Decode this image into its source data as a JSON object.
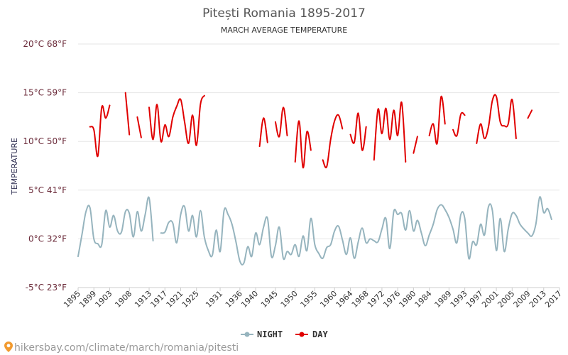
{
  "chart_data": {
    "type": "line",
    "title": "Pitești Romania 1895-2017",
    "subtitle": "MARCH AVERAGE TEMPERATURE",
    "ylabel": "TEMPERATURE",
    "ylim": [
      -5,
      20
    ],
    "xlim": [
      1895,
      2017
    ],
    "y_ticks": [
      {
        "value": 20,
        "label": "20°C 68°F"
      },
      {
        "value": 15,
        "label": "15°C 59°F"
      },
      {
        "value": 10,
        "label": "10°C 50°F"
      },
      {
        "value": 5,
        "label": "5°C 41°F"
      },
      {
        "value": 0,
        "label": "0°C 32°F"
      },
      {
        "value": -5,
        "label": "-5°C 23°F"
      }
    ],
    "x_ticks": [
      1895,
      1899,
      1903,
      1908,
      1913,
      1917,
      1921,
      1925,
      1931,
      1936,
      1940,
      1945,
      1950,
      1955,
      1960,
      1964,
      1968,
      1972,
      1976,
      1980,
      1984,
      1989,
      1993,
      1997,
      2001,
      2005,
      2009,
      2013,
      2017
    ],
    "grid": true,
    "legend_position": "bottom",
    "series": [
      {
        "name": "NIGHT",
        "color": "#96b4be",
        "segments": [
          [
            [
              1895,
              -1.8
            ],
            [
              1896,
              0.5
            ],
            [
              1897,
              2.8
            ],
            [
              1898,
              3.2
            ],
            [
              1899,
              0
            ],
            [
              1900,
              -0.5
            ],
            [
              1901,
              -0.6
            ],
            [
              1902,
              2.9
            ],
            [
              1903,
              1.2
            ],
            [
              1904,
              2.4
            ],
            [
              1905,
              0.8
            ],
            [
              1906,
              0.7
            ],
            [
              1907,
              2.8
            ],
            [
              1908,
              2.6
            ],
            [
              1909,
              0.2
            ],
            [
              1910,
              2.8
            ],
            [
              1911,
              0.8
            ],
            [
              1912,
              2.5
            ],
            [
              1913,
              4.2
            ],
            [
              1914,
              -0.2
            ]
          ],
          [
            [
              1916,
              0.6
            ],
            [
              1917,
              0.7
            ],
            [
              1918,
              1.7
            ],
            [
              1919,
              1.6
            ],
            [
              1920,
              -0.4
            ],
            [
              1921,
              2.5
            ],
            [
              1922,
              3.3
            ],
            [
              1923,
              0.8
            ],
            [
              1924,
              2.4
            ],
            [
              1925,
              0.2
            ],
            [
              1926,
              2.9
            ],
            [
              1927,
              0.2
            ],
            [
              1928,
              -1.2
            ],
            [
              1929,
              -1.7
            ],
            [
              1930,
              0.9
            ],
            [
              1931,
              -1.3
            ],
            [
              1932,
              2.9
            ],
            [
              1933,
              2.5
            ],
            [
              1934,
              1.5
            ],
            [
              1935,
              -0.3
            ],
            [
              1936,
              -2.3
            ],
            [
              1937,
              -2.5
            ],
            [
              1938,
              -0.8
            ],
            [
              1939,
              -1.8
            ],
            [
              1940,
              0.6
            ],
            [
              1941,
              -0.6
            ],
            [
              1942,
              1.2
            ],
            [
              1943,
              2.1
            ],
            [
              1944,
              -1.8
            ],
            [
              1945,
              -0.7
            ],
            [
              1946,
              1.2
            ],
            [
              1947,
              -2.0
            ],
            [
              1948,
              -1.3
            ],
            [
              1949,
              -1.6
            ],
            [
              1950,
              -0.6
            ],
            [
              1951,
              -1.8
            ],
            [
              1952,
              0.3
            ],
            [
              1953,
              -1.2
            ],
            [
              1954,
              2.1
            ],
            [
              1955,
              -0.6
            ],
            [
              1956,
              -1.5
            ],
            [
              1957,
              -2.0
            ],
            [
              1958,
              -0.9
            ],
            [
              1959,
              -0.6
            ],
            [
              1960,
              0.8
            ],
            [
              1961,
              1.3
            ],
            [
              1962,
              -0.1
            ],
            [
              1963,
              -1.6
            ],
            [
              1964,
              0.1
            ],
            [
              1965,
              -2.0
            ],
            [
              1966,
              -0.3
            ],
            [
              1967,
              1.1
            ],
            [
              1968,
              -0.4
            ],
            [
              1969,
              0.0
            ],
            [
              1970,
              -0.2
            ],
            [
              1971,
              -0.3
            ],
            [
              1972,
              1.0
            ],
            [
              1973,
              2.1
            ],
            [
              1974,
              -1.0
            ],
            [
              1975,
              2.8
            ],
            [
              1976,
              2.5
            ],
            [
              1977,
              2.6
            ],
            [
              1978,
              0.9
            ],
            [
              1979,
              2.9
            ],
            [
              1980,
              0.8
            ],
            [
              1981,
              1.9
            ],
            [
              1982,
              0.6
            ],
            [
              1983,
              -0.7
            ],
            [
              1984,
              0.4
            ],
            [
              1985,
              1.5
            ],
            [
              1986,
              3.0
            ],
            [
              1987,
              3.5
            ],
            [
              1988,
              3.0
            ],
            [
              1989,
              2.2
            ],
            [
              1990,
              1.0
            ],
            [
              1991,
              -0.4
            ],
            [
              1992,
              2.5
            ],
            [
              1993,
              2.1
            ],
            [
              1994,
              -2.0
            ],
            [
              1995,
              -0.3
            ],
            [
              1996,
              -0.6
            ],
            [
              1997,
              1.5
            ],
            [
              1998,
              0.4
            ],
            [
              1999,
              3.3
            ],
            [
              2000,
              2.9
            ],
            [
              2001,
              -1.2
            ],
            [
              2002,
              2.1
            ],
            [
              2003,
              -1.3
            ],
            [
              2004,
              1.0
            ],
            [
              2005,
              2.6
            ],
            [
              2006,
              2.4
            ],
            [
              2007,
              1.5
            ],
            [
              2008,
              1.0
            ],
            [
              2009,
              0.6
            ],
            [
              2010,
              0.3
            ],
            [
              2011,
              1.5
            ],
            [
              2012,
              4.3
            ],
            [
              2013,
              2.7
            ],
            [
              2014,
              3.1
            ],
            [
              2015,
              2.0
            ]
          ]
        ]
      },
      {
        "name": "DAY",
        "color": "#e00000",
        "segments": [
          [
            [
              1898,
              11.5
            ],
            [
              1899,
              11.2
            ],
            [
              1900,
              8.5
            ],
            [
              1901,
              13.5
            ],
            [
              1902,
              12.4
            ],
            [
              1903,
              13.7
            ]
          ],
          [
            [
              1907,
              15.0
            ],
            [
              1908,
              10.7
            ]
          ],
          [
            [
              1910,
              12.5
            ],
            [
              1911,
              10.4
            ]
          ],
          [
            [
              1913,
              13.5
            ],
            [
              1914,
              10.2
            ],
            [
              1915,
              13.8
            ],
            [
              1916,
              10.0
            ],
            [
              1917,
              11.7
            ],
            [
              1918,
              10.5
            ],
            [
              1919,
              12.5
            ],
            [
              1920,
              13.6
            ],
            [
              1921,
              14.3
            ],
            [
              1922,
              12.0
            ],
            [
              1923,
              9.8
            ],
            [
              1924,
              12.7
            ],
            [
              1925,
              9.6
            ],
            [
              1926,
              13.8
            ],
            [
              1927,
              14.7
            ]
          ],
          [
            [
              1941,
              9.5
            ],
            [
              1942,
              12.4
            ],
            [
              1943,
              9.9
            ]
          ],
          [
            [
              1945,
              12.0
            ],
            [
              1946,
              10.5
            ],
            [
              1947,
              13.5
            ],
            [
              1948,
              10.6
            ]
          ],
          [
            [
              1950,
              7.9
            ],
            [
              1951,
              12.1
            ],
            [
              1952,
              7.3
            ],
            [
              1953,
              11.0
            ],
            [
              1954,
              9.1
            ]
          ],
          [
            [
              1957,
              8.1
            ],
            [
              1958,
              7.4
            ],
            [
              1959,
              10.2
            ],
            [
              1960,
              12.1
            ],
            [
              1961,
              12.7
            ],
            [
              1962,
              11.3
            ]
          ],
          [
            [
              1964,
              10.7
            ],
            [
              1965,
              9.9
            ],
            [
              1966,
              12.9
            ],
            [
              1967,
              9.1
            ],
            [
              1968,
              11.5
            ]
          ],
          [
            [
              1970,
              8.1
            ],
            [
              1971,
              13.3
            ],
            [
              1972,
              10.8
            ],
            [
              1973,
              13.4
            ],
            [
              1974,
              10.2
            ],
            [
              1975,
              13.2
            ],
            [
              1976,
              10.6
            ],
            [
              1977,
              14.0
            ],
            [
              1978,
              7.9
            ]
          ],
          [
            [
              1980,
              8.8
            ],
            [
              1981,
              10.5
            ]
          ],
          [
            [
              1984,
              10.6
            ],
            [
              1985,
              11.8
            ],
            [
              1986,
              9.8
            ],
            [
              1987,
              14.6
            ],
            [
              1988,
              11.8
            ]
          ],
          [
            [
              1990,
              11.2
            ],
            [
              1991,
              10.6
            ],
            [
              1992,
              12.8
            ],
            [
              1993,
              12.7
            ]
          ],
          [
            [
              1996,
              9.8
            ],
            [
              1997,
              11.8
            ],
            [
              1998,
              10.3
            ],
            [
              1999,
              11.5
            ],
            [
              2000,
              14.2
            ],
            [
              2001,
              14.6
            ],
            [
              2002,
              12.0
            ],
            [
              2003,
              11.6
            ],
            [
              2004,
              11.8
            ],
            [
              2005,
              14.3
            ],
            [
              2006,
              10.3
            ]
          ],
          [
            [
              2009,
              12.4
            ],
            [
              2010,
              13.2
            ]
          ]
        ]
      }
    ]
  },
  "footer": {
    "source": "hikersbay.com/climate/march/romania/pitesti"
  }
}
